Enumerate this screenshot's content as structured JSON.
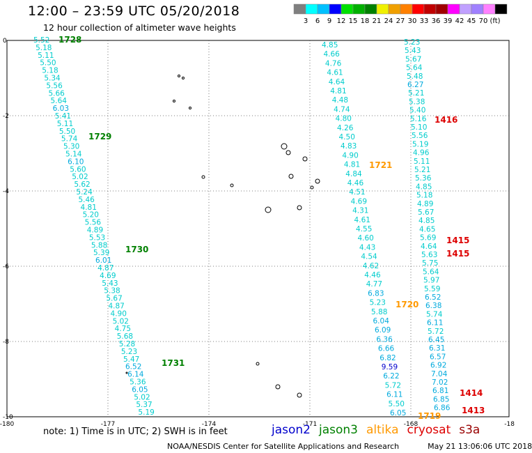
{
  "title": "12:00 – 23:59 UTC 05/20/2018",
  "subtitle": "12 hour collection of altimeter wave heights",
  "scale": {
    "colors": [
      "#7f7f7f",
      "#00ffff",
      "#00c0ff",
      "#0000ff",
      "#00e000",
      "#00b000",
      "#008000",
      "#f0f000",
      "#f0a000",
      "#ff8000",
      "#ff0000",
      "#c00000",
      "#a00000",
      "#ff00ff",
      "#c0a0ff",
      "#a080ff",
      "#ff80ff",
      "#000000"
    ],
    "labels": [
      "3",
      "6",
      "9",
      "12",
      "15",
      "18",
      "21",
      "24",
      "27",
      "30",
      "33",
      "36",
      "39",
      "42",
      "45",
      "70",
      "(ft)"
    ]
  },
  "axes": {
    "x_labels": [
      "-180",
      "-177",
      "-174",
      "-171",
      "-168"
    ],
    "y_labels": [
      "0",
      "-2",
      "-4",
      "-6",
      "-8",
      "-10"
    ],
    "right_edge_label": "-18"
  },
  "tracks": [
    {
      "name": "jason3",
      "color": "#00cccc",
      "values": [
        "5.52",
        "5.18",
        "5.11",
        "5.50",
        "5.18",
        "5.34",
        "5.56",
        "5.66",
        "5.64",
        "6.03",
        "5.41",
        "5.11",
        "5.50",
        "5.74",
        "5.30",
        "5.14",
        "6.10",
        "5.60",
        "5.02",
        "5.62",
        "5.24",
        "5.46",
        "4.81",
        "5.20",
        "5.56",
        "4.89",
        "5.53",
        "5.88",
        "5.39",
        "6.01",
        "4.87",
        "4.69",
        "5.43",
        "5.38",
        "5.67",
        "4.87",
        "4.90",
        "5.02",
        "4.75",
        "5.68",
        "5.28",
        "5.23",
        "5.47",
        "6.52",
        "6.14",
        "5.36",
        "6.05",
        "5.02",
        "5.37",
        "5.19"
      ],
      "times": [
        {
          "label": "1728",
          "color": "#008000"
        },
        {
          "label": "1729",
          "color": "#008000"
        },
        {
          "label": "1730",
          "color": "#008000"
        },
        {
          "label": "1731",
          "color": "#008000"
        }
      ]
    },
    {
      "name": "altika",
      "color": "#00cccc",
      "values": [
        "4.85",
        "4.66",
        "4.76",
        "4.61",
        "4.64",
        "4.81",
        "4.48",
        "4.74",
        "4.80",
        "4.26",
        "4.50",
        "4.83",
        "4.90",
        "4.81",
        "4.84",
        "4.46",
        "4.51",
        "4.69",
        "4.31",
        "4.61",
        "4.55",
        "4.60",
        "4.43",
        "4.54",
        "4.62",
        "4.46",
        "4.77",
        "6.83",
        "5.23",
        "5.88",
        "6.04",
        "6.09",
        "6.36",
        "6.66",
        "6.82",
        "9.59",
        "6.22",
        "5.72",
        "6.11",
        "5.50",
        "6.05"
      ],
      "times": [
        {
          "label": "1721",
          "color": "#ff9900"
        },
        {
          "label": "1720",
          "color": "#ff9900"
        },
        {
          "label": "1719",
          "color": "#ff9900"
        }
      ]
    },
    {
      "name": "cryosat",
      "color": "#00cccc",
      "values": [
        "5.23",
        "5.43",
        "5.67",
        "5.64",
        "5.48",
        "6.27",
        "5.21",
        "5.38",
        "5.40",
        "5.16",
        "5.10",
        "5.56",
        "5.19",
        "4.96",
        "5.11",
        "5.21",
        "5.36",
        "4.85",
        "5.18",
        "4.89",
        "5.67",
        "4.85",
        "4.65",
        "5.69",
        "4.64",
        "5.63",
        "5.75",
        "5.64",
        "5.97",
        "5.59",
        "6.52",
        "6.38",
        "5.74",
        "6.11",
        "5.72",
        "6.45",
        "6.31",
        "6.57",
        "6.92",
        "7.04",
        "7.02",
        "6.81",
        "6.85",
        "6.86"
      ],
      "times": [
        {
          "label": "1416",
          "color": "#dd0000"
        },
        {
          "label": "1415",
          "color": "#dd0000"
        },
        {
          "label": "1415",
          "color": "#dd0000"
        },
        {
          "label": "1414",
          "color": "#dd0000"
        },
        {
          "label": "1413",
          "color": "#dd0000"
        }
      ]
    }
  ],
  "note": "note: 1) Time is in UTC; 2) SWH is in feet",
  "legend": [
    {
      "label": "jason2",
      "color": "#0000cc"
    },
    {
      "label": "jason3",
      "color": "#008000"
    },
    {
      "label": "altika",
      "color": "#ff9900"
    },
    {
      "label": "cryosat",
      "color": "#dd0000"
    },
    {
      "label": "s3a",
      "color": "#990000"
    }
  ],
  "credit": "NOAA/NESDIS Center for Satellite Applications and Research",
  "timestamp": "May 21 13:06:06 UTC 2018"
}
